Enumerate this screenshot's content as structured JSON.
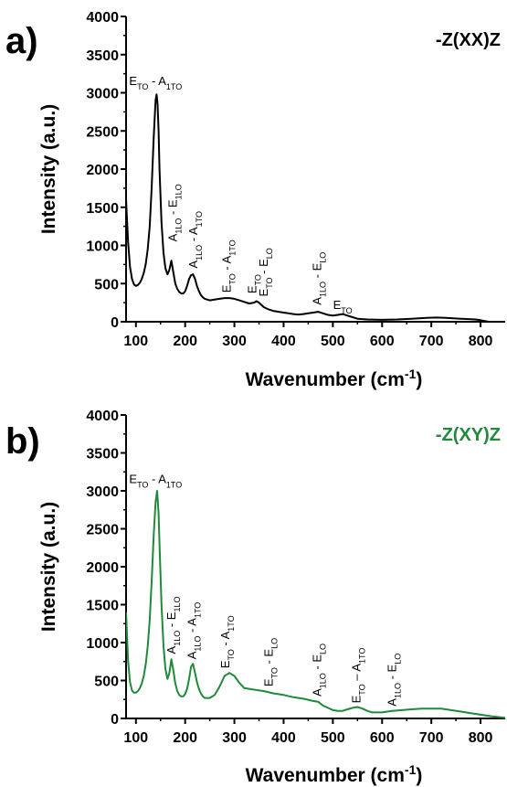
{
  "chart_data": [
    {
      "panel": "a)",
      "type": "line",
      "title": "-Z(XX)Z",
      "title_color": "#000000",
      "line_color": "#000000",
      "xlabel": "Wavenumber (cm-1)",
      "ylabel": "Intensity (a.u.)",
      "xlim": [
        80,
        850
      ],
      "ylim": [
        0,
        4000
      ],
      "xticks": [
        100,
        200,
        300,
        400,
        500,
        600,
        700,
        800
      ],
      "yticks": [
        0,
        500,
        1000,
        1500,
        2000,
        2500,
        3000,
        3500,
        4000
      ],
      "series": [
        {
          "x": [
            80,
            84,
            88,
            92,
            96,
            100,
            104,
            108,
            112,
            116,
            120,
            124,
            128,
            132,
            136,
            140,
            142,
            144,
            146,
            148,
            152,
            156,
            160,
            164,
            168,
            172,
            176,
            180,
            184,
            188,
            192,
            196,
            200,
            204,
            208,
            212,
            216,
            220,
            224,
            228,
            232,
            236,
            240,
            250,
            260,
            270,
            280,
            290,
            300,
            310,
            320,
            330,
            340,
            345,
            350,
            355,
            360,
            370,
            380,
            390,
            400,
            410,
            420,
            430,
            440,
            450,
            460,
            470,
            480,
            490,
            500,
            510,
            520,
            530,
            540,
            550,
            570,
            600,
            630,
            660,
            690,
            710,
            730,
            760,
            790,
            800,
            820,
            850
          ],
          "y": [
            1600,
            1050,
            720,
            560,
            490,
            470,
            480,
            510,
            560,
            640,
            760,
            950,
            1250,
            1750,
            2400,
            2900,
            2980,
            2850,
            2500,
            2000,
            1300,
            900,
            700,
            620,
            680,
            800,
            650,
            500,
            430,
            390,
            370,
            370,
            400,
            470,
            560,
            610,
            620,
            560,
            470,
            400,
            350,
            320,
            300,
            280,
            290,
            300,
            310,
            310,
            300,
            280,
            260,
            240,
            250,
            270,
            250,
            220,
            190,
            160,
            140,
            130,
            120,
            110,
            100,
            95,
            100,
            110,
            120,
            130,
            110,
            90,
            80,
            90,
            100,
            80,
            60,
            40,
            30,
            25,
            30,
            40,
            50,
            55,
            50,
            40,
            30,
            20,
            -5,
            -20
          ]
        }
      ],
      "annotations": [
        {
          "base": "E",
          "sub": "TO",
          "sep": " - ",
          "base2": "A",
          "sub2": "1TO",
          "x": 140,
          "y": 3100,
          "rotate": 0
        },
        {
          "base": "A",
          "sub": "1LO",
          "sep": " - ",
          "base2": "E",
          "sub2": "1LO",
          "x": 183,
          "y": 1050,
          "rotate": -90
        },
        {
          "base": "A",
          "sub": "1LO",
          "sep": " - ",
          "base2": "A",
          "sub2": "1TO",
          "x": 225,
          "y": 700,
          "rotate": -90
        },
        {
          "base": "E",
          "sub": "TO",
          "sep": " - ",
          "base2": "A",
          "sub2": "1TO",
          "x": 292,
          "y": 380,
          "rotate": -90
        },
        {
          "base": "E",
          "sub": "TO",
          "sep": "",
          "base2": "",
          "sub2": "",
          "x": 344,
          "y": 370,
          "rotate": -90
        },
        {
          "base": "E",
          "sub": "TO",
          "sep": " - ",
          "base2": "E",
          "sub2": "LO",
          "x": 368,
          "y": 330,
          "rotate": -90
        },
        {
          "base": "A",
          "sub": "1LO",
          "sep": " - ",
          "base2": "E",
          "sub2": "LO",
          "x": 476,
          "y": 220,
          "rotate": -90
        },
        {
          "base": "E",
          "sub": "TO",
          "sep": "",
          "base2": "",
          "sub2": "",
          "x": 520,
          "y": 170,
          "rotate": 0
        }
      ]
    },
    {
      "panel": "b)",
      "type": "line",
      "title": "-Z(XY)Z",
      "title_color": "#1e8a3a",
      "line_color": "#1e8a3a",
      "xlabel": "Wavenumber (cm-1)",
      "ylabel": "Intensity (a.u.)",
      "xlim": [
        80,
        850
      ],
      "ylim": [
        0,
        4000
      ],
      "xticks": [
        100,
        200,
        300,
        400,
        500,
        600,
        700,
        800
      ],
      "yticks": [
        0,
        500,
        1000,
        1500,
        2000,
        2500,
        3000,
        3500,
        4000
      ],
      "series": [
        {
          "x": [
            80,
            84,
            88,
            92,
            96,
            100,
            104,
            108,
            112,
            116,
            120,
            124,
            128,
            132,
            136,
            140,
            143,
            146,
            148,
            152,
            156,
            160,
            164,
            168,
            172,
            176,
            180,
            184,
            188,
            192,
            196,
            200,
            204,
            208,
            212,
            216,
            220,
            224,
            228,
            232,
            236,
            240,
            250,
            260,
            270,
            280,
            290,
            300,
            310,
            320,
            340,
            360,
            380,
            400,
            420,
            440,
            460,
            470,
            480,
            490,
            500,
            510,
            520,
            530,
            540,
            550,
            560,
            570,
            580,
            600,
            620,
            640,
            660,
            680,
            700,
            720,
            740,
            760,
            780,
            800,
            820,
            850
          ],
          "y": [
            1400,
            760,
            480,
            370,
            340,
            340,
            360,
            400,
            460,
            560,
            720,
            950,
            1300,
            1800,
            2400,
            2850,
            3000,
            2700,
            2300,
            1500,
            950,
            650,
            520,
            600,
            780,
            640,
            460,
            360,
            310,
            290,
            290,
            320,
            390,
            520,
            680,
            720,
            600,
            480,
            390,
            330,
            290,
            270,
            270,
            310,
            420,
            560,
            600,
            560,
            470,
            400,
            380,
            360,
            330,
            310,
            280,
            260,
            230,
            220,
            170,
            140,
            110,
            100,
            100,
            120,
            140,
            150,
            130,
            100,
            80,
            80,
            100,
            110,
            120,
            130,
            130,
            130,
            110,
            90,
            70,
            50,
            30,
            10
          ]
        }
      ],
      "annotations": [
        {
          "base": "E",
          "sub": "TO",
          "sep": " - ",
          "base2": "A",
          "sub2": "1TO",
          "x": 140,
          "y": 3100,
          "rotate": 0
        },
        {
          "base": "A",
          "sub": "1LO",
          "sep": " - ",
          "base2": "E",
          "sub2": "1LO",
          "x": 180,
          "y": 850,
          "rotate": -90
        },
        {
          "base": "A",
          "sub": "1LO",
          "sep": " - ",
          "base2": "A",
          "sub2": "1TO",
          "x": 222,
          "y": 780,
          "rotate": -90
        },
        {
          "base": "E",
          "sub": "TO",
          "sep": " - ",
          "base2": "A",
          "sub2": "1TO",
          "x": 290,
          "y": 660,
          "rotate": -90
        },
        {
          "base": "E",
          "sub": "TO",
          "sep": " - ",
          "base2": "E",
          "sub2": "LO",
          "x": 378,
          "y": 420,
          "rotate": -90
        },
        {
          "base": "A",
          "sub": "1LO",
          "sep": " - ",
          "base2": "E",
          "sub2": "LO",
          "x": 476,
          "y": 290,
          "rotate": -90
        },
        {
          "base": "E",
          "sub": "TO",
          "sep": " – ",
          "base2": "A",
          "sub2": "1TO",
          "x": 556,
          "y": 200,
          "rotate": -90
        },
        {
          "base": "A",
          "sub": "1LO",
          "sep": " - ",
          "base2": "E",
          "sub2": "LO",
          "x": 628,
          "y": 160,
          "rotate": -90
        }
      ]
    }
  ]
}
